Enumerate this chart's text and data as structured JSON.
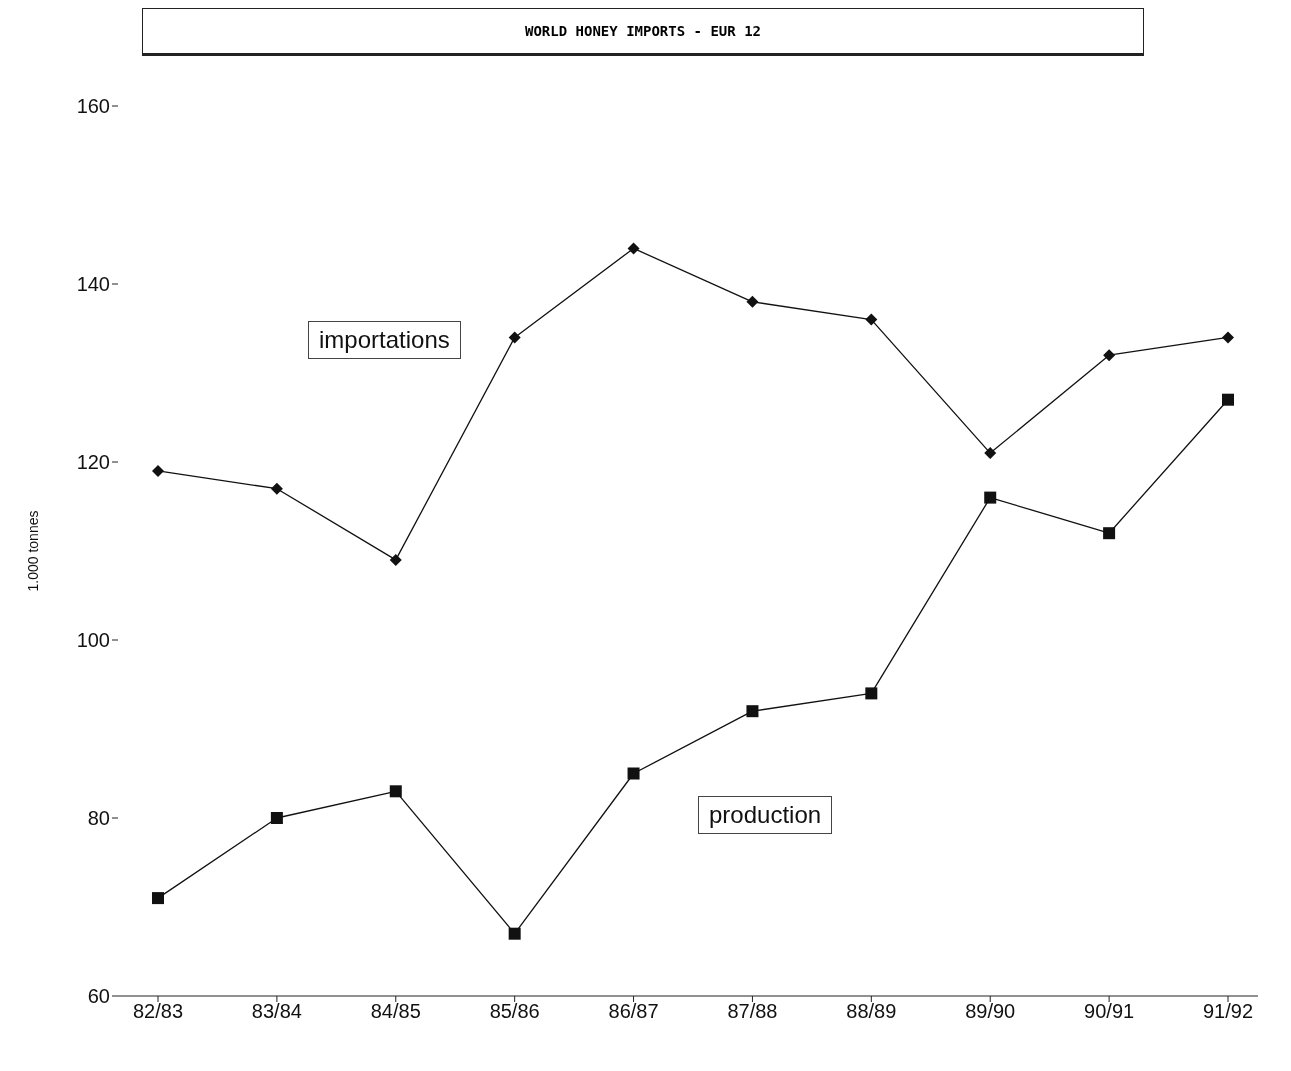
{
  "chart_data": {
    "type": "line",
    "title": "WORLD HONEY IMPORTS - EUR 12",
    "ylabel": "1.000 tonnes",
    "categories": [
      "82/83",
      "83/84",
      "84/85",
      "85/86",
      "86/87",
      "87/88",
      "88/89",
      "89/90",
      "90/91",
      "91/92"
    ],
    "series": [
      {
        "name": "importations",
        "color": "#111111",
        "marker": "diamond",
        "values": [
          119,
          117,
          109,
          134,
          144,
          138,
          136,
          121,
          132,
          134
        ]
      },
      {
        "name": "production",
        "color": "#111111",
        "marker": "square",
        "values": [
          71,
          80,
          83,
          67,
          85,
          92,
          94,
          116,
          112,
          127
        ]
      }
    ],
    "ylim": [
      60,
      160
    ],
    "yticks": [
      60,
      80,
      100,
      120,
      140,
      160
    ],
    "grid": false,
    "legend": false
  }
}
